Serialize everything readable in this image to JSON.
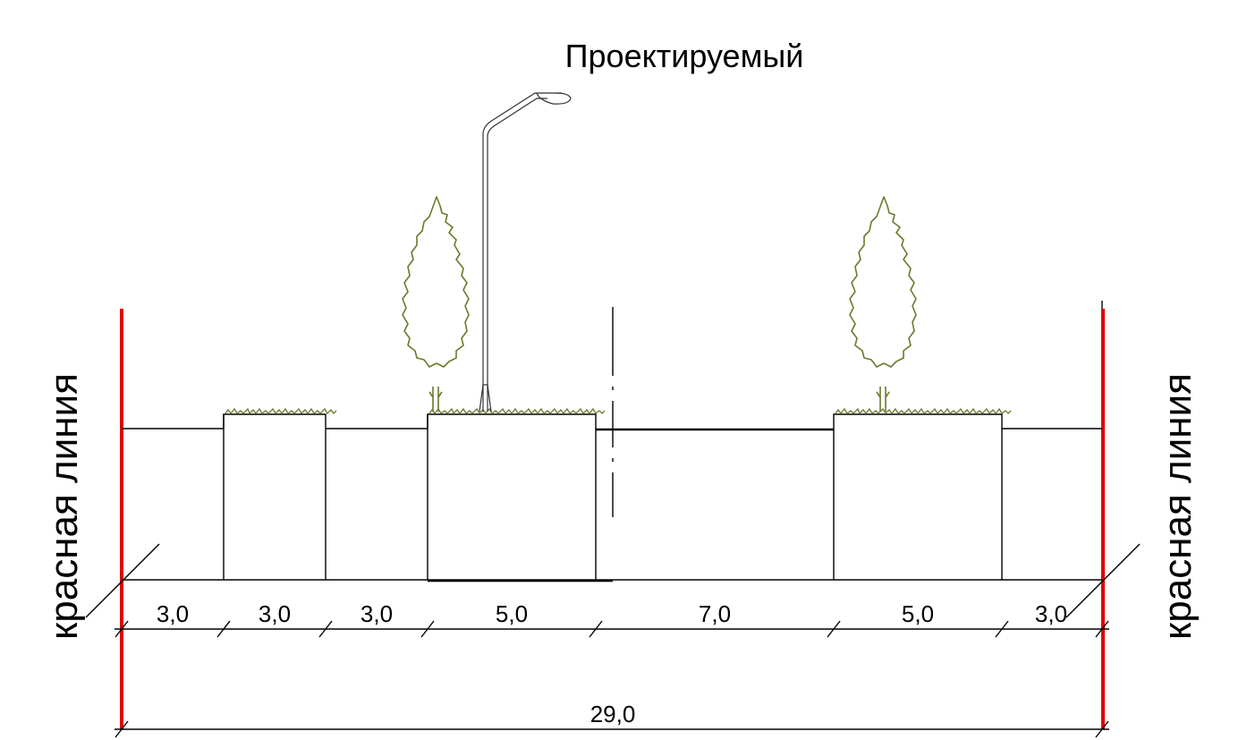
{
  "title": "Проектируемый",
  "red_line_left": "красная линия",
  "red_line_right": "красная линия",
  "segments": [
    {
      "name": "sidewalk-left",
      "width": 3.0,
      "label": "3,0"
    },
    {
      "name": "green-strip-left",
      "width": 3.0,
      "label": "3,0"
    },
    {
      "name": "sidewalk-center",
      "width": 3.0,
      "label": "3,0"
    },
    {
      "name": "green-strip-with-tree-and-lamp",
      "width": 5.0,
      "label": "5,0"
    },
    {
      "name": "carriageway",
      "width": 7.0,
      "label": "7,0"
    },
    {
      "name": "green-strip-with-tree-right",
      "width": 5.0,
      "label": "5,0"
    },
    {
      "name": "sidewalk-right",
      "width": 3.0,
      "label": "3,0"
    }
  ],
  "total": {
    "value": 29.0,
    "label": "29,0"
  },
  "colors": {
    "red_line": "#e00000",
    "vegetation": "#6b7a2c",
    "line": "#000000"
  },
  "icons": [
    "tree-icon",
    "street-lamp-icon",
    "grass-icon"
  ]
}
